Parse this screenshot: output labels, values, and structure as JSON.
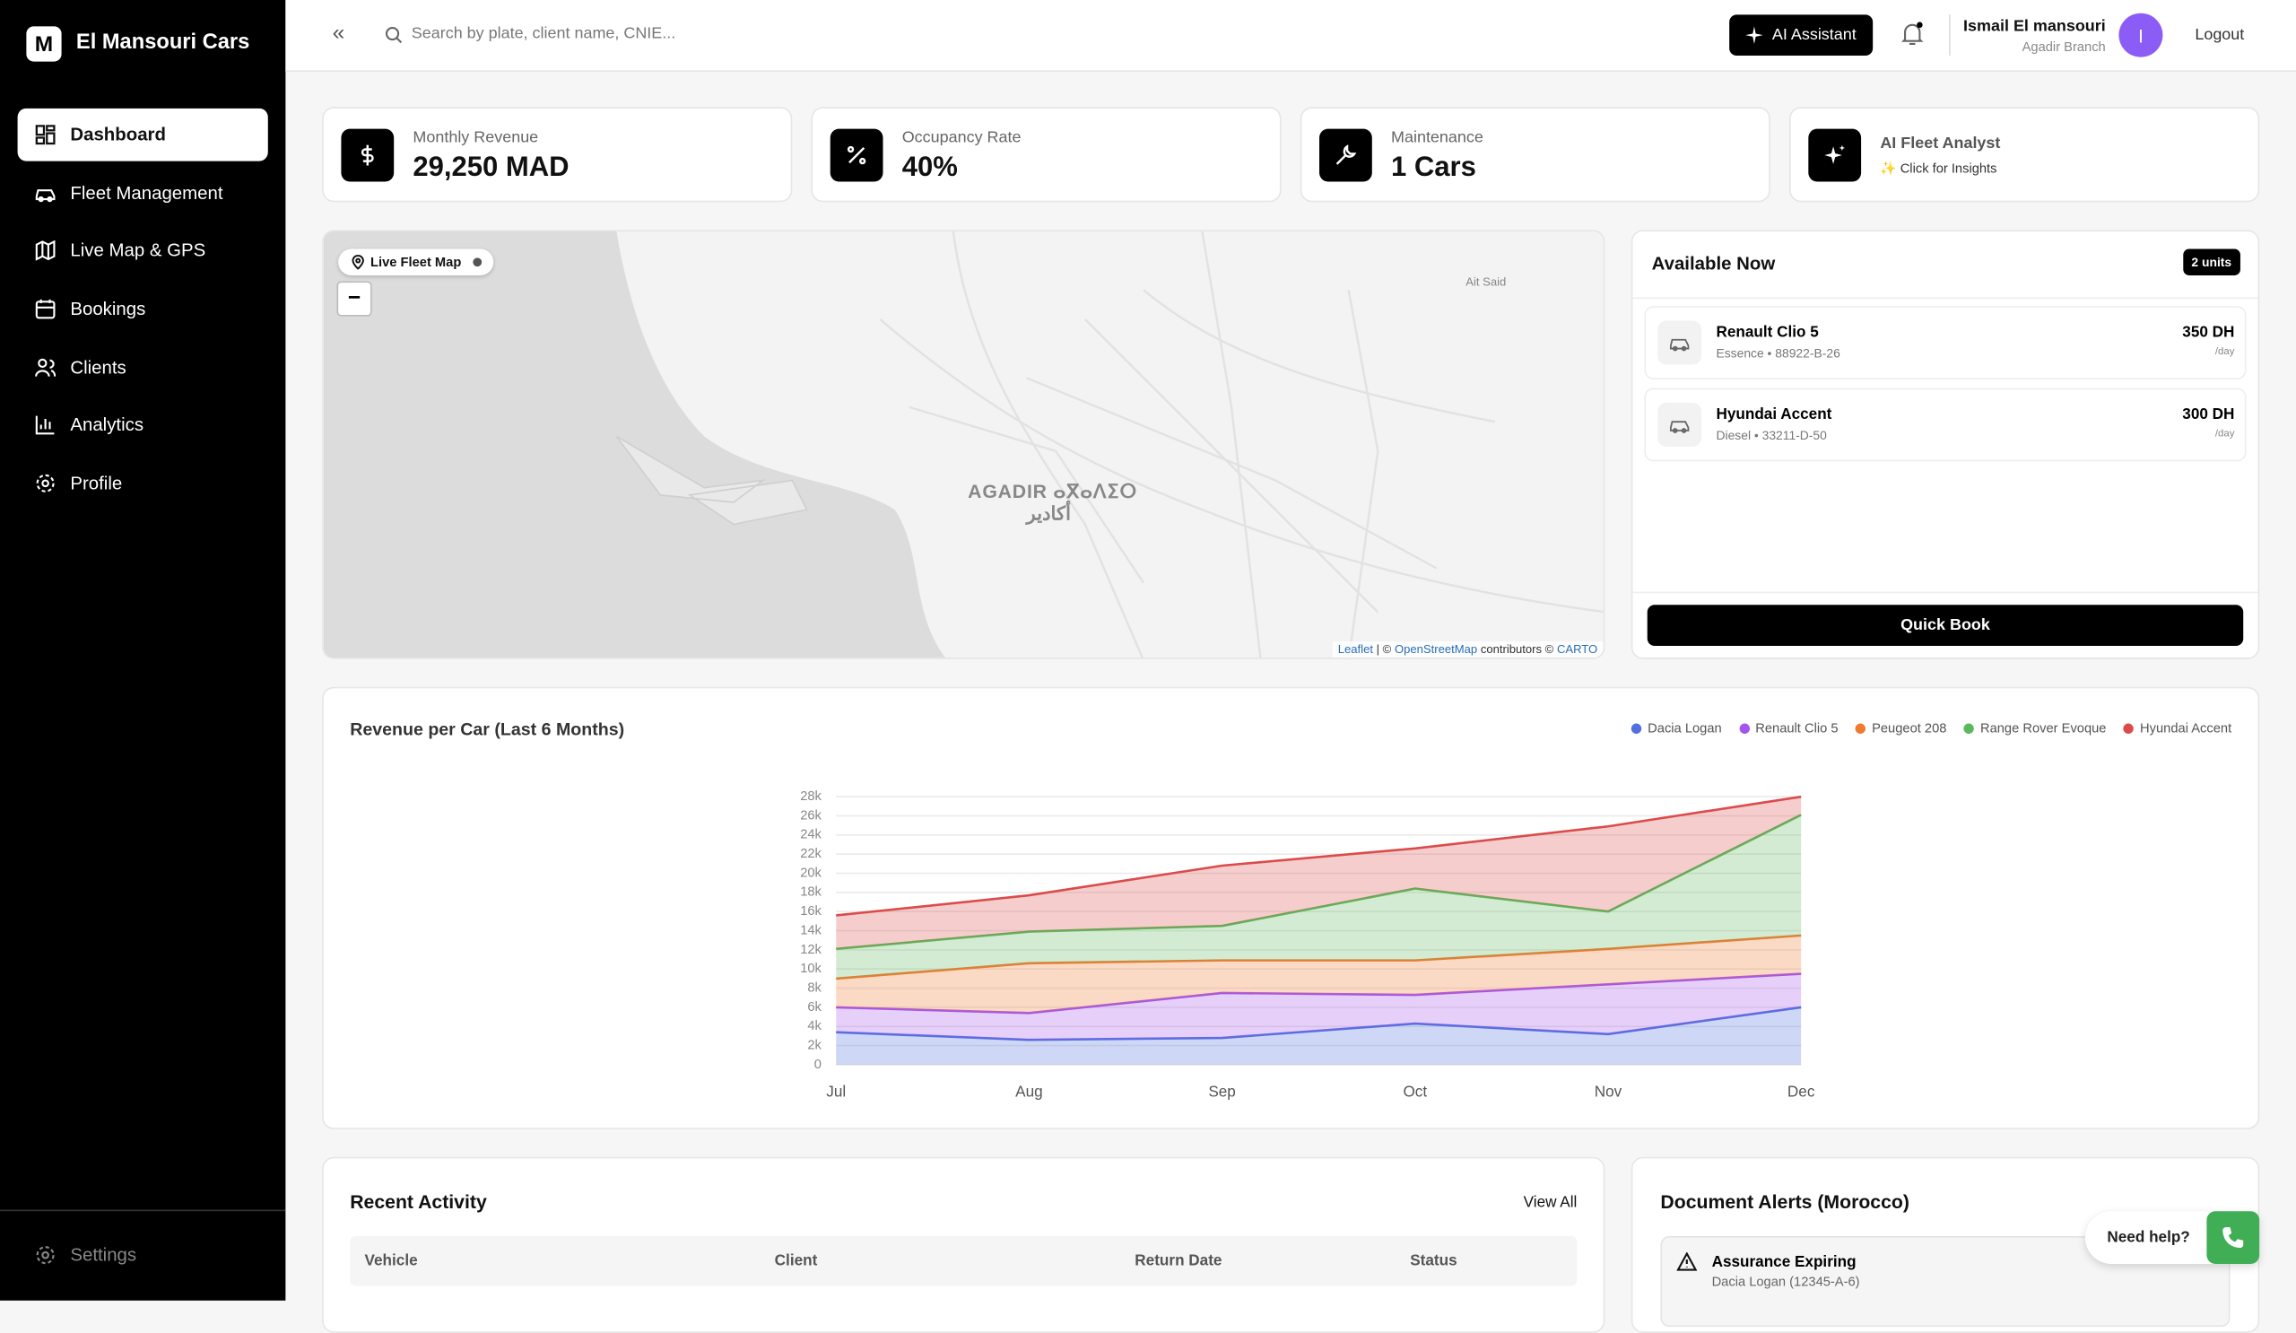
{
  "sidebar": {
    "brand_initial": "M",
    "brand": "El Mansouri Cars",
    "nav": [
      "Dashboard",
      "Fleet Management",
      "Live Map & GPS",
      "Bookings",
      "Clients",
      "Analytics",
      "Profile"
    ],
    "settings": "Settings"
  },
  "header": {
    "search_placeholder": "Search by plate, client name, CNIE...",
    "ai_button": "AI Assistant",
    "user_name": "Ismail El mansouri",
    "user_branch": "Agadir Branch",
    "avatar_initial": "I",
    "logout": "Logout"
  },
  "stats": [
    {
      "label": "Monthly Revenue",
      "value": "29,250 MAD"
    },
    {
      "label": "Occupancy Rate",
      "value": "40%"
    },
    {
      "label": "Maintenance",
      "value": "1 Cars"
    },
    {
      "label": "AI Fleet Analyst",
      "value": "✨ Click for Insights"
    }
  ],
  "map": {
    "badge": "Live Fleet Map",
    "zoom_out": "−",
    "city_latin": "AGADIR ⴰⴳⴰⴷⵉⵔ",
    "city_arabic": "أكادير",
    "place": "Ait Said",
    "attribution": [
      "Leaflet",
      "| ©",
      "OpenStreetMap",
      "contributors ©",
      "CARTO"
    ]
  },
  "available": {
    "title": "Available Now",
    "count": "2 units",
    "cars": [
      {
        "name": "Renault Clio 5",
        "details": "Essence • 88922-B-26",
        "price": "350 DH",
        "unit": "/day"
      },
      {
        "name": "Hyundai Accent",
        "details": "Diesel • 33211-D-50",
        "price": "300 DH",
        "unit": "/day"
      }
    ],
    "button": "Quick Book"
  },
  "chart_data": {
    "type": "stacked-area",
    "title": "Revenue per Car (Last 6 Months)",
    "categories": [
      "Jul",
      "Aug",
      "Sep",
      "Oct",
      "Nov",
      "Dec"
    ],
    "series": [
      {
        "name": "Dacia Logan",
        "color": "#5470e0",
        "values": [
          3400,
          2600,
          2800,
          4300,
          3200,
          6000
        ]
      },
      {
        "name": "Renault Clio 5",
        "color": "#a455ee",
        "values": [
          2600,
          2800,
          4700,
          3000,
          5200,
          3500
        ]
      },
      {
        "name": "Peugeot 208",
        "color": "#f07a30",
        "values": [
          3000,
          5200,
          3400,
          3600,
          3700,
          4000
        ]
      },
      {
        "name": "Range Rover Evoque",
        "color": "#5cb85c",
        "values": [
          3100,
          3300,
          3600,
          7500,
          3900,
          12600
        ]
      },
      {
        "name": "Hyundai Accent",
        "color": "#dc4b4b",
        "values": [
          3500,
          3800,
          6300,
          4200,
          8900,
          1900
        ]
      }
    ],
    "ylim": [
      0,
      28000
    ],
    "yticks": [
      0,
      {
        "value": 2000,
        "label": "2k"
      },
      {
        "value": 4000,
        "label": "4k"
      },
      {
        "value": 6000,
        "label": "6k"
      },
      {
        "value": 8000,
        "label": "8k"
      },
      {
        "value": 10000,
        "label": "10k"
      },
      {
        "value": 12000,
        "label": "12k"
      },
      {
        "value": 14000,
        "label": "14k"
      },
      {
        "value": 16000,
        "label": "16k"
      },
      {
        "value": 18000,
        "label": "18k"
      },
      {
        "value": 20000,
        "label": "20k"
      },
      {
        "value": 22000,
        "label": "22k"
      },
      {
        "value": 24000,
        "label": "24k"
      },
      {
        "value": 26000,
        "label": "26k"
      },
      {
        "value": 28000,
        "label": "28k"
      }
    ],
    "grid": true,
    "legend": "top-right"
  },
  "recent_activity": {
    "title": "Recent Activity",
    "link": "View All",
    "columns": [
      "Vehicle",
      "Client",
      "Return Date",
      "Status"
    ]
  },
  "document_alerts": {
    "title": "Document Alerts (Morocco)",
    "alerts": [
      {
        "title": "Assurance Expiring",
        "detail": "Dacia Logan (12345-A-6)"
      }
    ]
  },
  "help": "Need help?"
}
